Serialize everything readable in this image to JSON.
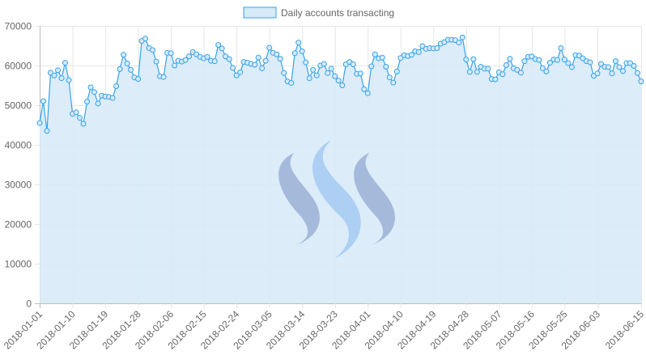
{
  "chart_data": {
    "type": "line",
    "title": "",
    "xlabel": "",
    "ylabel": "",
    "legend": {
      "position": "top",
      "label": "Daily accounts transacting"
    },
    "grid": true,
    "ylim": [
      0,
      70000
    ],
    "y_ticks": [
      0,
      10000,
      20000,
      30000,
      40000,
      50000,
      60000,
      70000
    ],
    "x_start": "2018-01-01",
    "x_end": "2018-06-15",
    "x_ticks": [
      "2018-01-01",
      "2018-01-10",
      "2018-01-19",
      "2018-01-28",
      "2018-02-06",
      "2018-02-15",
      "2018-02-24",
      "2018-03-05",
      "2018-03-14",
      "2018-03-23",
      "2018-04-01",
      "2018-04-10",
      "2018-04-19",
      "2018-04-28",
      "2018-05-07",
      "2018-05-16",
      "2018-05-25",
      "2018-06-03",
      "2018-06-15"
    ],
    "series": [
      {
        "name": "Daily accounts transacting",
        "line_color": "#36a2eb",
        "fill_color": "#d6eaf8",
        "values": [
          45500,
          51000,
          43500,
          58200,
          57500,
          58800,
          56800,
          60700,
          56300,
          47800,
          48200,
          46800,
          45300,
          50900,
          54500,
          53300,
          50400,
          52400,
          52200,
          52100,
          51800,
          54800,
          59100,
          62700,
          60500,
          58900,
          57000,
          56600,
          66200,
          66800,
          64400,
          63900,
          61000,
          57300,
          57100,
          63200,
          63100,
          60000,
          61200,
          61000,
          61400,
          62300,
          63400,
          62800,
          62200,
          61800,
          62200,
          61200,
          61100,
          65200,
          64300,
          62300,
          61600,
          59400,
          57500,
          58300,
          60900,
          60700,
          60400,
          60200,
          62000,
          59300,
          61200,
          64500,
          63200,
          62800,
          61700,
          58100,
          56000,
          55600,
          63100,
          65800,
          63600,
          60800,
          56800,
          58900,
          57500,
          60000,
          60400,
          58100,
          59200,
          57300,
          56200,
          55000,
          60300,
          60900,
          60300,
          57900,
          58000,
          54000,
          53000,
          59800,
          62800,
          61800,
          62000,
          59700,
          57000,
          55700,
          58500,
          61900,
          62600,
          62400,
          62700,
          63600,
          63400,
          64900,
          64200,
          64400,
          64300,
          64400,
          65500,
          65900,
          66500,
          66500,
          66400,
          65800,
          67100,
          61500,
          58400,
          61600,
          58400,
          59700,
          59200,
          59200,
          56600,
          56500,
          58300,
          57800,
          60100,
          61700,
          59300,
          58900,
          58200,
          61100,
          62200,
          62300,
          61600,
          61400,
          59300,
          58500,
          60700,
          61500,
          61400,
          64400,
          61500,
          60600,
          59600,
          62600,
          62500,
          61800,
          61100,
          60800,
          57400,
          58000,
          60400,
          59700,
          59600,
          58000,
          61100,
          59600,
          58600,
          60600,
          60600,
          59900,
          58100,
          56000
        ]
      }
    ]
  }
}
